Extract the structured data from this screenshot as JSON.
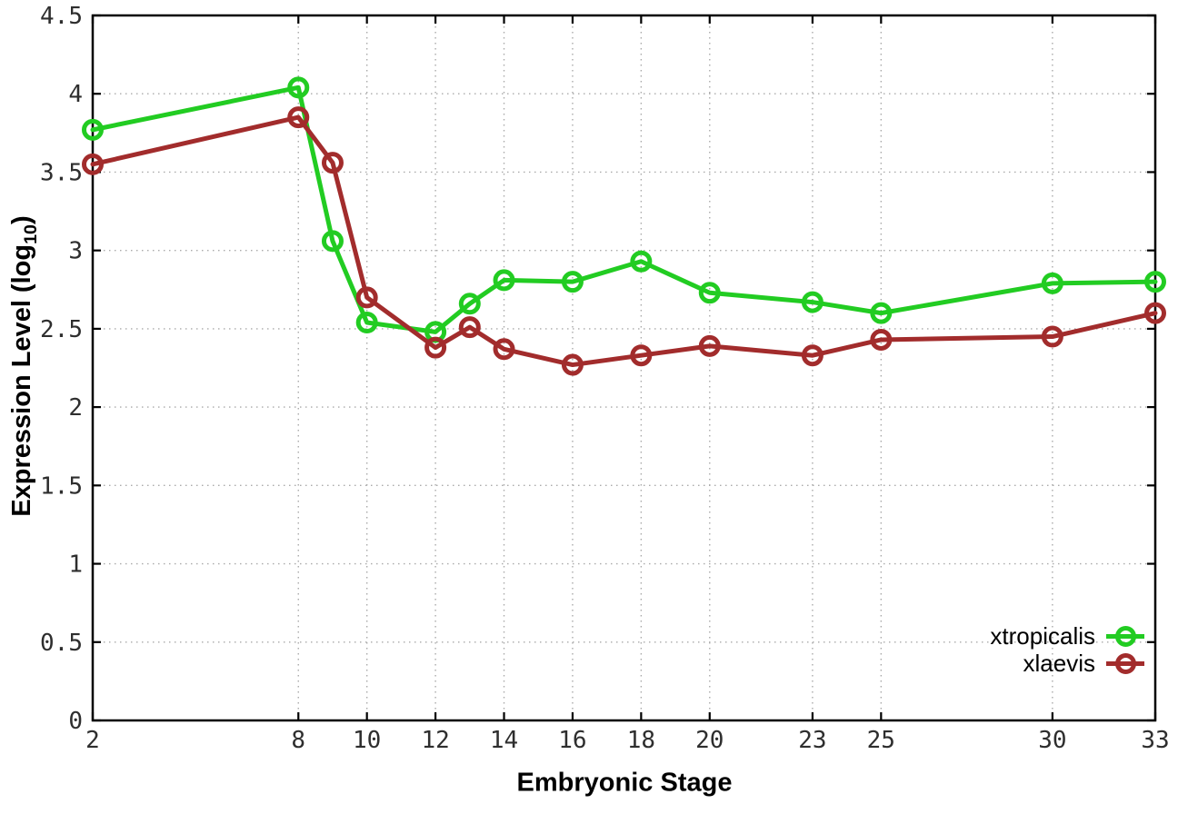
{
  "chart_data": {
    "type": "line",
    "title": "",
    "xlabel": "Embryonic Stage",
    "ylabel": "Expression Level (log10)",
    "ylabel_parts": {
      "main": "Expression Level (log",
      "sub": "10",
      "end": ")"
    },
    "x": [
      2,
      8,
      9,
      10,
      12,
      13,
      14,
      16,
      18,
      20,
      23,
      25,
      30,
      33
    ],
    "x_ticks": [
      2,
      8,
      10,
      12,
      14,
      16,
      18,
      20,
      23,
      25,
      30,
      33
    ],
    "y_ticks": [
      0,
      0.5,
      1,
      1.5,
      2,
      2.5,
      3,
      3.5,
      4,
      4.5
    ],
    "y_tick_labels": [
      "0",
      "0.5",
      "1",
      "1.5",
      "2",
      "2.5",
      "3",
      "3.5",
      "4",
      "4.5"
    ],
    "xlim": [
      2,
      33
    ],
    "ylim": [
      0,
      4.5
    ],
    "grid": true,
    "legend_position": "bottom-right",
    "marker": "open-circle",
    "series": [
      {
        "name": "xtropicalis",
        "color": "#22CC22",
        "values": [
          3.77,
          4.04,
          3.06,
          2.54,
          2.48,
          2.66,
          2.81,
          2.8,
          2.93,
          2.73,
          2.67,
          2.6,
          2.79,
          2.8
        ]
      },
      {
        "name": "xlaevis",
        "color": "#A22C2C",
        "values": [
          3.55,
          3.85,
          3.56,
          2.7,
          2.38,
          2.51,
          2.37,
          2.27,
          2.33,
          2.39,
          2.33,
          2.43,
          2.45,
          2.6
        ]
      }
    ],
    "colors": {
      "border": "#000000",
      "grid": "#aaaaaa",
      "tick_text": "#2e2e2e",
      "background": "#ffffff"
    }
  }
}
